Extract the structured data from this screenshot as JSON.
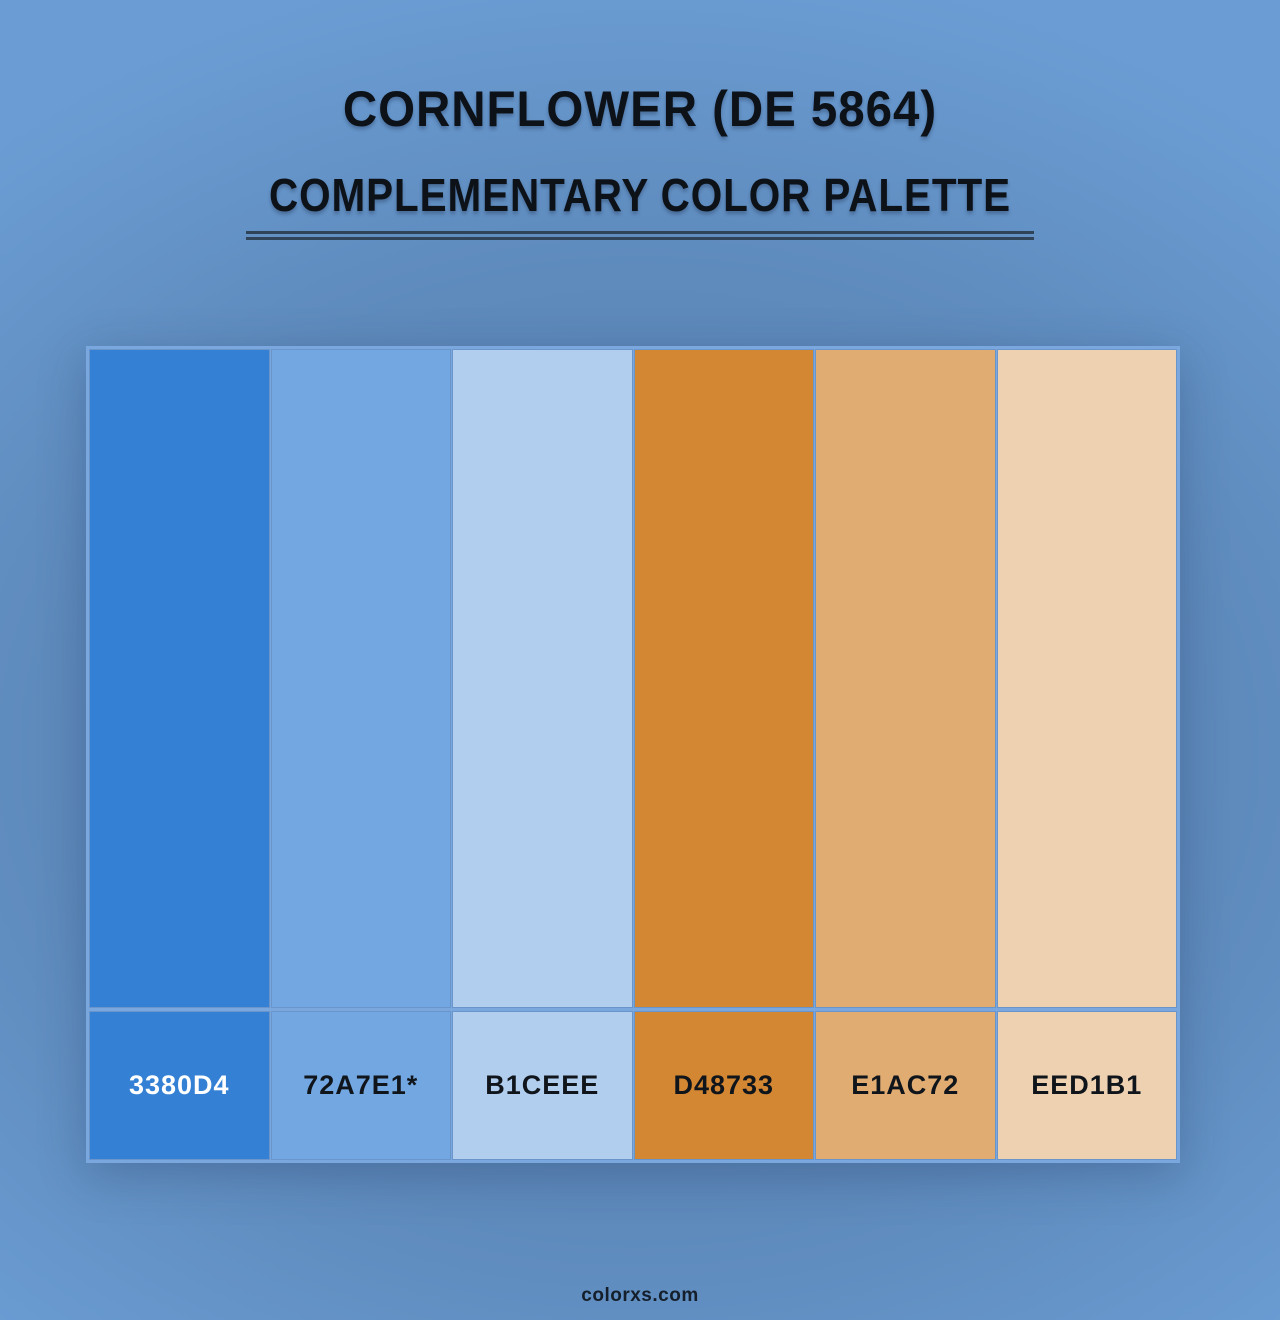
{
  "header": {
    "title": "CORNFLOWER (DE 5864)",
    "subtitle": "COMPLEMENTARY COLOR PALETTE"
  },
  "palette": {
    "swatches": [
      {
        "label": "3380D4",
        "hex": "#3380D4",
        "label_color": "#FFFFFF"
      },
      {
        "label": "72A7E1*",
        "hex": "#72A7E1",
        "label_color": "#10151B"
      },
      {
        "label": "B1CEEE",
        "hex": "#B1CEEE",
        "label_color": "#10151B"
      },
      {
        "label": "D48733",
        "hex": "#D48733",
        "label_color": "#10151B"
      },
      {
        "label": "E1AC72",
        "hex": "#E1AC72",
        "label_color": "#10151B"
      },
      {
        "label": "EED1B1",
        "hex": "#EED1B1",
        "label_color": "#10151B"
      }
    ]
  },
  "footer": {
    "watermark": "colorxs.com"
  },
  "colors": {
    "background_outer": "#6B9DD4",
    "background_center": "#587FAB",
    "grid_frame": "#79A7DE",
    "divider": "#2F4458",
    "heading_text": "#0D1219"
  }
}
